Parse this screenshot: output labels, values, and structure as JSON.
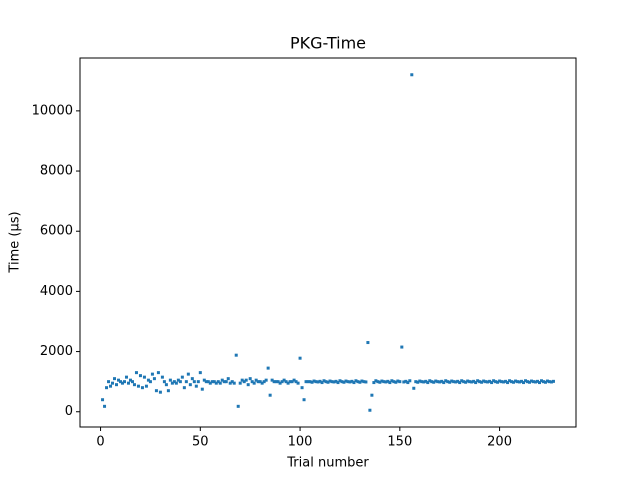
{
  "chart_data": {
    "type": "scatter",
    "title": "PKG-Time",
    "xlabel": "Trial number",
    "ylabel": "Time (µs)",
    "color": "#1f77b4",
    "xlim": [
      -10.3,
      238.3
    ],
    "ylim": [
      -507,
      11757
    ],
    "xticks": [
      0,
      50,
      100,
      150,
      200
    ],
    "yticks": [
      0,
      2000,
      4000,
      6000,
      8000,
      10000
    ],
    "x": [
      1,
      2,
      3,
      4,
      5,
      6,
      7,
      8,
      9,
      10,
      11,
      12,
      13,
      14,
      15,
      16,
      17,
      18,
      19,
      20,
      21,
      22,
      23,
      24,
      25,
      26,
      27,
      28,
      29,
      30,
      31,
      32,
      33,
      34,
      35,
      36,
      37,
      38,
      39,
      40,
      41,
      42,
      43,
      44,
      45,
      46,
      47,
      48,
      49,
      50,
      51,
      52,
      53,
      54,
      55,
      56,
      57,
      58,
      59,
      60,
      61,
      62,
      63,
      64,
      65,
      66,
      67,
      68,
      69,
      70,
      71,
      72,
      73,
      74,
      75,
      76,
      77,
      78,
      79,
      80,
      81,
      82,
      83,
      84,
      85,
      86,
      87,
      88,
      89,
      90,
      91,
      92,
      93,
      94,
      95,
      96,
      97,
      98,
      99,
      100,
      101,
      102,
      103,
      104,
      105,
      106,
      107,
      108,
      109,
      110,
      111,
      112,
      113,
      114,
      115,
      116,
      117,
      118,
      119,
      120,
      121,
      122,
      123,
      124,
      125,
      126,
      127,
      128,
      129,
      130,
      131,
      132,
      133,
      134,
      135,
      136,
      137,
      138,
      139,
      140,
      141,
      142,
      143,
      144,
      145,
      146,
      147,
      148,
      149,
      150,
      151,
      152,
      153,
      154,
      155,
      156,
      157,
      158,
      159,
      160,
      161,
      162,
      163,
      164,
      165,
      166,
      167,
      168,
      169,
      170,
      171,
      172,
      173,
      174,
      175,
      176,
      177,
      178,
      179,
      180,
      181,
      182,
      183,
      184,
      185,
      186,
      187,
      188,
      189,
      190,
      191,
      192,
      193,
      194,
      195,
      196,
      197,
      198,
      199,
      200,
      201,
      202,
      203,
      204,
      205,
      206,
      207,
      208,
      209,
      210,
      211,
      212,
      213,
      214,
      215,
      216,
      217,
      218,
      219,
      220,
      221,
      222,
      223,
      224,
      225,
      226,
      227
    ],
    "values": [
      400,
      180,
      800,
      1000,
      850,
      950,
      1100,
      900,
      1050,
      1000,
      950,
      1000,
      1150,
      950,
      1050,
      1000,
      900,
      1300,
      850,
      1200,
      800,
      1150,
      850,
      1050,
      1000,
      1250,
      1100,
      700,
      1300,
      650,
      1150,
      1000,
      900,
      700,
      1050,
      950,
      1000,
      950,
      1050,
      1000,
      1150,
      800,
      1000,
      1250,
      900,
      1100,
      1000,
      850,
      1000,
      1300,
      750,
      1050,
      1000,
      1000,
      950,
      1000,
      1000,
      950,
      1000,
      950,
      1050,
      1000,
      1000,
      1100,
      950,
      1000,
      950,
      1880,
      180,
      950,
      1050,
      1000,
      1050,
      900,
      1100,
      1000,
      950,
      1050,
      1000,
      1000,
      950,
      1000,
      1050,
      1450,
      550,
      1050,
      1000,
      1000,
      1000,
      950,
      1000,
      1050,
      1000,
      950,
      1000,
      1000,
      1050,
      1000,
      950,
      1780,
      800,
      400,
      1000,
      1000,
      1000,
      980,
      1020,
      1000,
      990,
      1010,
      970,
      1030,
      1000,
      980,
      1020,
      1000,
      990,
      1010,
      970,
      1030,
      1000,
      980,
      1020,
      1000,
      990,
      1010,
      970,
      1030,
      1000,
      980,
      1020,
      1000,
      990,
      2300,
      50,
      550,
      970,
      1030,
      1000,
      980,
      1020,
      1000,
      990,
      1010,
      970,
      1030,
      1000,
      980,
      1020,
      1000,
      2150,
      990,
      1010,
      970,
      1030,
      11200,
      780,
      1000,
      980,
      1020,
      1000,
      990,
      1010,
      970,
      1030,
      1000,
      980,
      1020,
      1000,
      990,
      1010,
      970,
      1030,
      1000,
      980,
      1020,
      1000,
      990,
      1010,
      970,
      1030,
      1000,
      980,
      1020,
      1000,
      990,
      1010,
      970,
      1030,
      1000,
      980,
      1020,
      1000,
      990,
      1010,
      970,
      1030,
      1000,
      980,
      1020,
      1000,
      990,
      1010,
      970,
      1030,
      1000,
      980,
      1020,
      1000,
      990,
      1010,
      970,
      1030,
      1000,
      980,
      1020,
      1000,
      990,
      1010,
      970,
      1030,
      1000,
      980,
      1020,
      1000,
      990,
      1010
    ]
  }
}
